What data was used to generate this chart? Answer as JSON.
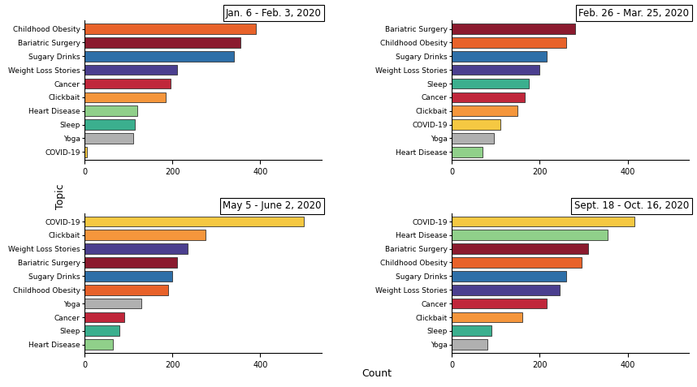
{
  "panels": [
    {
      "title": "Jan. 6 - Feb. 3, 2020",
      "topics": [
        "Childhood Obesity",
        "Bariatric Surgery",
        "Sugary Drinks",
        "Weight Loss Stories",
        "Cancer",
        "Clickbait",
        "Heart Disease",
        "Sleep",
        "Yoga",
        "COVID-19"
      ],
      "values": [
        390,
        355,
        340,
        210,
        195,
        185,
        120,
        115,
        110,
        5
      ]
    },
    {
      "title": "Feb. 26 - Mar. 25, 2020",
      "topics": [
        "Bariatric Surgery",
        "Childhood Obesity",
        "Sugary Drinks",
        "Weight Loss Stories",
        "Sleep",
        "Cancer",
        "Clickbait",
        "COVID-19",
        "Yoga",
        "Heart Disease"
      ],
      "values": [
        280,
        260,
        215,
        200,
        175,
        165,
        150,
        110,
        95,
        70
      ]
    },
    {
      "title": "May 5 - June 2, 2020",
      "topics": [
        "COVID-19",
        "Clickbait",
        "Weight Loss Stories",
        "Bariatric Surgery",
        "Sugary Drinks",
        "Childhood Obesity",
        "Yoga",
        "Cancer",
        "Sleep",
        "Heart Disease"
      ],
      "values": [
        500,
        275,
        235,
        210,
        200,
        190,
        130,
        90,
        80,
        65
      ]
    },
    {
      "title": "Sept. 18 - Oct. 16, 2020",
      "topics": [
        "COVID-19",
        "Heart Disease",
        "Bariatric Surgery",
        "Childhood Obesity",
        "Sugary Drinks",
        "Weight Loss Stories",
        "Cancer",
        "Clickbait",
        "Sleep",
        "Yoga"
      ],
      "values": [
        415,
        355,
        310,
        295,
        260,
        245,
        215,
        160,
        90,
        80
      ]
    }
  ],
  "topic_colors": {
    "Childhood Obesity": "#E8622A",
    "Bariatric Surgery": "#8B1A2E",
    "Sugary Drinks": "#2E6FA8",
    "Weight Loss Stories": "#4B3F8F",
    "Cancer": "#C0273B",
    "Clickbait": "#F5963C",
    "Heart Disease": "#90D08A",
    "Sleep": "#3BAF8E",
    "Yoga": "#B0B0B0",
    "COVID-19": "#F5C842"
  },
  "xlabel": "Count",
  "ylabel": "Topic",
  "xlim": [
    0,
    540
  ],
  "xticks": [
    0,
    200,
    400
  ],
  "background_color": "#ffffff"
}
